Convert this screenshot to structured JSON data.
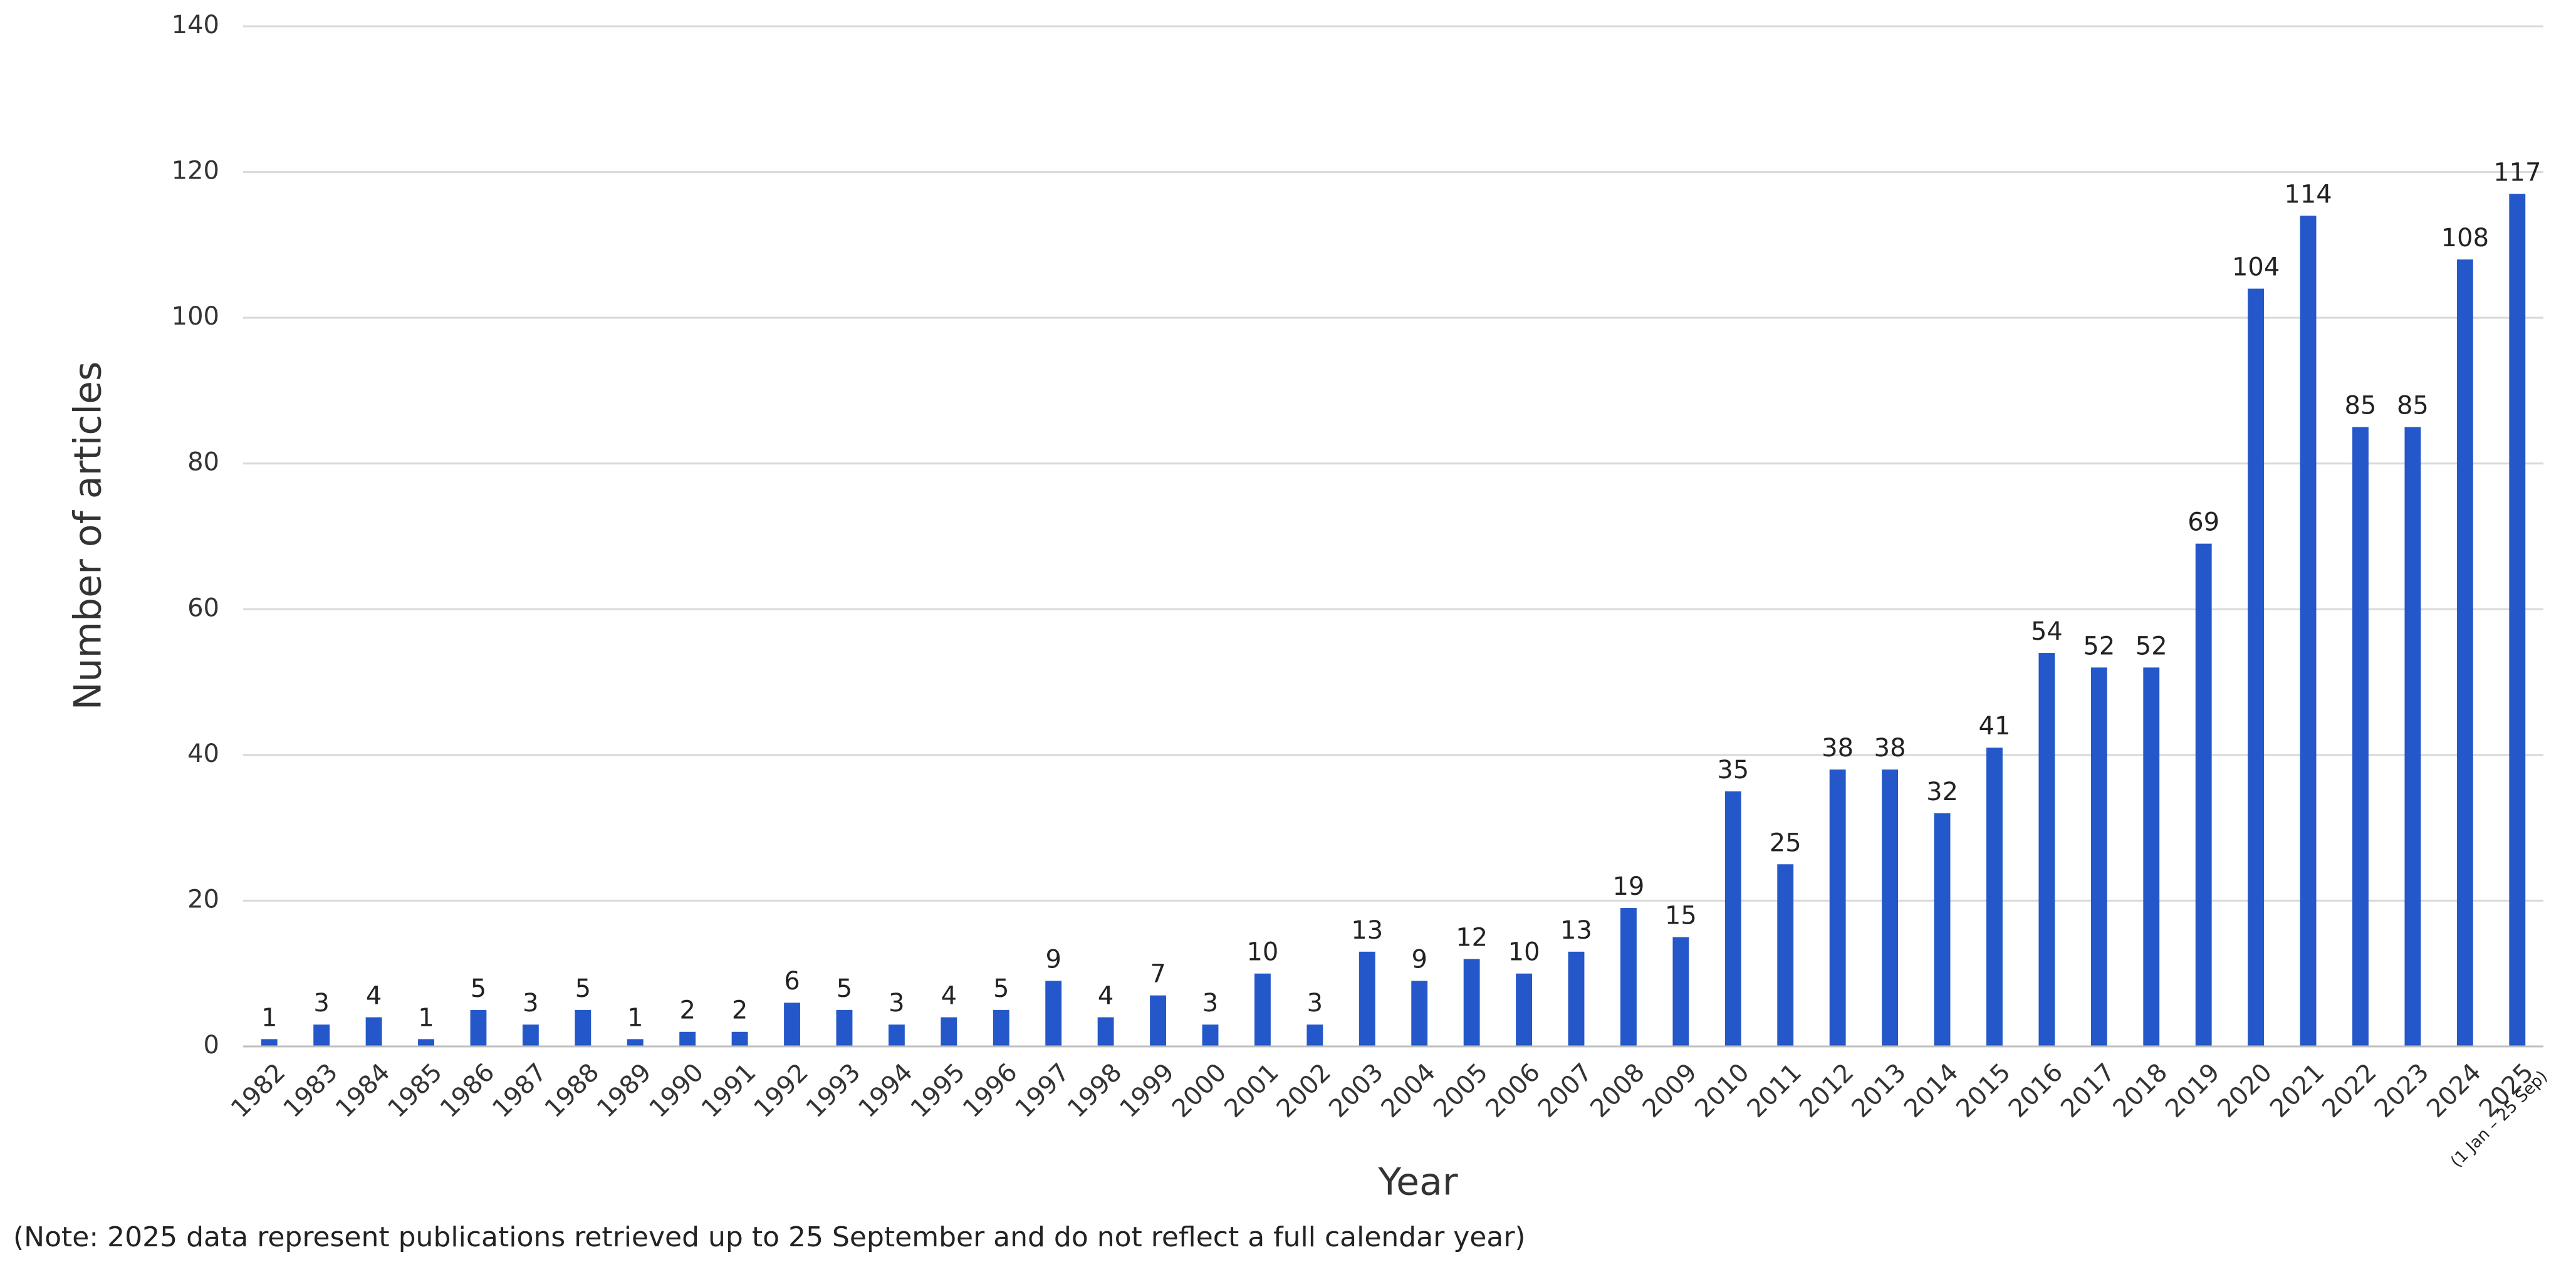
{
  "chart_data": {
    "type": "bar",
    "x_label": "Year",
    "y_label": "Number of articles",
    "categories": [
      "1982",
      "1983",
      "1984",
      "1985",
      "1986",
      "1987",
      "1988",
      "1989",
      "1990",
      "1991",
      "1992",
      "1993",
      "1994",
      "1995",
      "1996",
      "1997",
      "1998",
      "1999",
      "2000",
      "2001",
      "2002",
      "2003",
      "2004",
      "2005",
      "2006",
      "2007",
      "2008",
      "2009",
      "2010",
      "2011",
      "2012",
      "2013",
      "2014",
      "2015",
      "2016",
      "2017",
      "2018",
      "2019",
      "2020",
      "2021",
      "2022",
      "2023",
      "2024",
      "2025"
    ],
    "last_category_note": "(1 Jan – 25 Sep)",
    "values": [
      1,
      3,
      4,
      1,
      5,
      3,
      5,
      1,
      2,
      2,
      6,
      5,
      3,
      4,
      5,
      9,
      4,
      7,
      3,
      10,
      3,
      13,
      9,
      12,
      10,
      13,
      19,
      15,
      35,
      25,
      38,
      38,
      32,
      41,
      54,
      52,
      52,
      69,
      104,
      114,
      85,
      85,
      108,
      117
    ],
    "color": "#2457c9",
    "ylim": [
      0,
      140
    ],
    "yticks": [
      0,
      20,
      40,
      60,
      80,
      100,
      120,
      140
    ],
    "grid": true,
    "note": "(Note: 2025 data represent publications retrieved up to 25 September and do not reflect a full calendar year)"
  }
}
